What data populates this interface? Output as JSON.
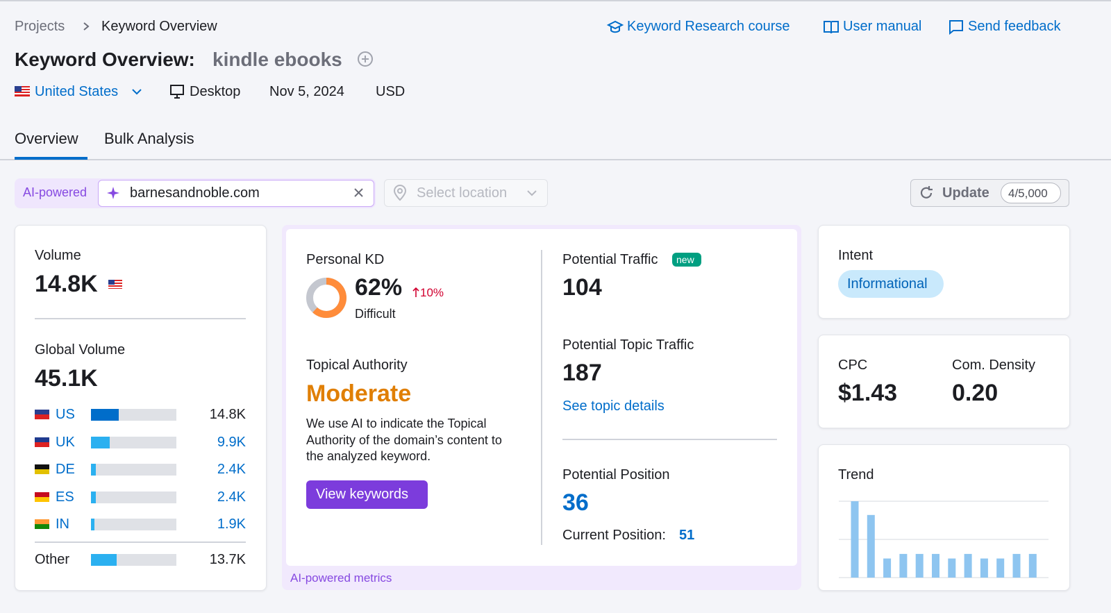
{
  "breadcrumb": [
    "Projects",
    "Keyword Overview"
  ],
  "header_links": [
    "Keyword Research course",
    "User manual",
    "Send feedback"
  ],
  "title": {
    "label": "Keyword Overview:",
    "keyword": "kindle ebooks"
  },
  "meta": {
    "country": "United States",
    "device": "Desktop",
    "date": "Nov 5, 2024",
    "currency": "USD"
  },
  "tabs": [
    "Overview",
    "Bulk Analysis"
  ],
  "filters": {
    "ai_badge": "AI-powered",
    "domain": "barnesandnoble.com",
    "location_placeholder": "Select location",
    "update": "Update",
    "quota": "4/5,000"
  },
  "volume": {
    "label": "Volume",
    "value": "14.8K"
  },
  "global_volume": {
    "label": "Global Volume",
    "value": 45100,
    "value_label": "45.1K",
    "countries": {
      "codes": [
        "US",
        "UK",
        "DE",
        "ES",
        "IN"
      ],
      "values": [
        14800,
        9900,
        2400,
        2400,
        1900
      ],
      "value_labels": [
        "14.8K",
        "9.9K",
        "2.4K",
        "2.4K",
        "1.9K"
      ]
    },
    "other": {
      "label": "Other",
      "value": 13700,
      "value_label": "13.7K"
    }
  },
  "personal_kd": {
    "label": "Personal KD",
    "value": 62,
    "value_label": "62%",
    "change": "10%",
    "level": "Difficult"
  },
  "topical_authority": {
    "label": "Topical Authority",
    "value": "Moderate",
    "description": "We use AI to indicate the Topical Authority of the domain’s content to the analyzed keyword.",
    "button": "View keywords"
  },
  "potential_traffic": {
    "label": "Potential Traffic",
    "badge": "new",
    "value": "104"
  },
  "potential_topic_traffic": {
    "label": "Potential Topic Traffic",
    "value": "187",
    "link": "See topic details"
  },
  "potential_position": {
    "label": "Potential Position",
    "value": "36",
    "current_label": "Current Position:",
    "current_value": "51"
  },
  "ai_footer": "AI-powered metrics",
  "intent": {
    "label": "Intent",
    "value": "Informational"
  },
  "cpc": {
    "label": "CPC",
    "value": "$1.43"
  },
  "com_density": {
    "label": "Com. Density",
    "value": "0.20"
  },
  "trend": {
    "label": "Trend",
    "values": [
      1.0,
      0.82,
      0.25,
      0.31,
      0.31,
      0.31,
      0.25,
      0.31,
      0.25,
      0.25,
      0.31,
      0.31
    ],
    "ylim": [
      0,
      1
    ],
    "yticks": [
      0,
      0.5,
      1
    ],
    "color": "#8ec5f0"
  }
}
